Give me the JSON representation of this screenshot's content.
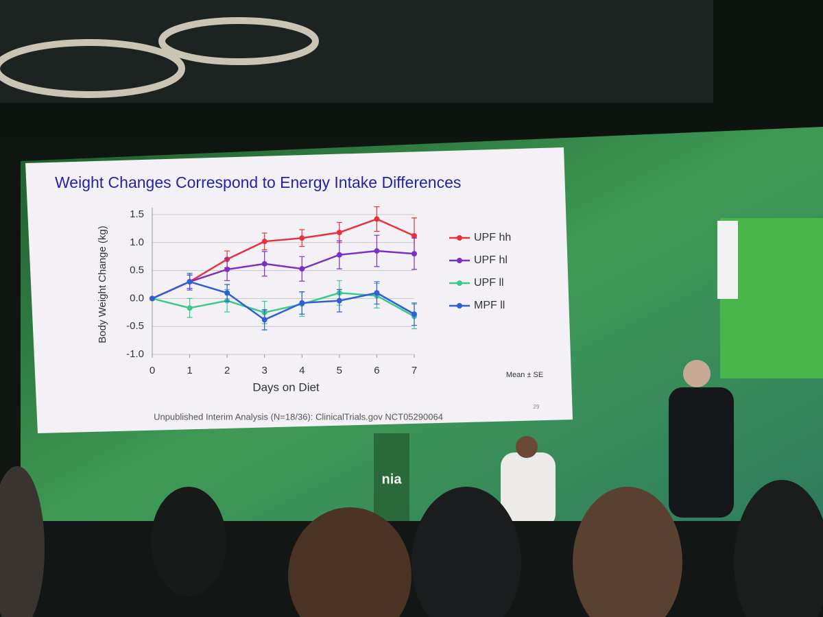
{
  "chart_data": {
    "type": "line",
    "title": "Weight Changes Correspond to Energy Intake Differences",
    "y_label": "Body Weight Change (kg)",
    "x_label": "Days on Diet",
    "note": "Mean ± SE",
    "footer": "Unpublished Interim Analysis (N=18/36): ClinicalTrials.gov NCT05290064",
    "slide_number": "29",
    "x": [
      0,
      1,
      2,
      3,
      4,
      5,
      6,
      7
    ],
    "xlim": [
      0,
      7
    ],
    "xticks": [
      0,
      1,
      2,
      3,
      4,
      5,
      6,
      7
    ],
    "ylim": [
      -1,
      1.5
    ],
    "yticks": [
      {
        "value": -1,
        "label": "-1.0"
      },
      -0.5,
      {
        "value": 0,
        "label": "0.0"
      },
      0.5,
      {
        "value": 1,
        "label": "1.0"
      },
      1.5
    ],
    "grid": true,
    "legend": "right",
    "series": [
      {
        "name": "UPF hh",
        "color": "#e5323d",
        "values": [
          0,
          0.3,
          0.7,
          1.02,
          1.08,
          1.18,
          1.42,
          1.12
        ],
        "errors": [
          0,
          0.12,
          0.15,
          0.15,
          0.15,
          0.18,
          0.22,
          0.32
        ]
      },
      {
        "name": "UPF hl",
        "color": "#7b30c2",
        "values": [
          0,
          0.3,
          0.52,
          0.62,
          0.53,
          0.78,
          0.85,
          0.8
        ],
        "errors": [
          0,
          0.12,
          0.2,
          0.22,
          0.22,
          0.25,
          0.28,
          0.28
        ]
      },
      {
        "name": "UPF ll",
        "color": "#3cc88c",
        "values": [
          0,
          -0.17,
          -0.04,
          -0.25,
          -0.1,
          0.1,
          0.05,
          -0.32
        ],
        "errors": [
          0,
          0.17,
          0.2,
          0.2,
          0.22,
          0.22,
          0.22,
          0.22
        ]
      },
      {
        "name": "MPF ll",
        "color": "#2e5fd8",
        "values": [
          0,
          0.3,
          0.1,
          -0.38,
          -0.08,
          -0.04,
          0.1,
          -0.28
        ],
        "errors": [
          0,
          0.15,
          0.15,
          0.18,
          0.2,
          0.2,
          0.2,
          0.2
        ]
      }
    ]
  },
  "podium_logo": "nia"
}
